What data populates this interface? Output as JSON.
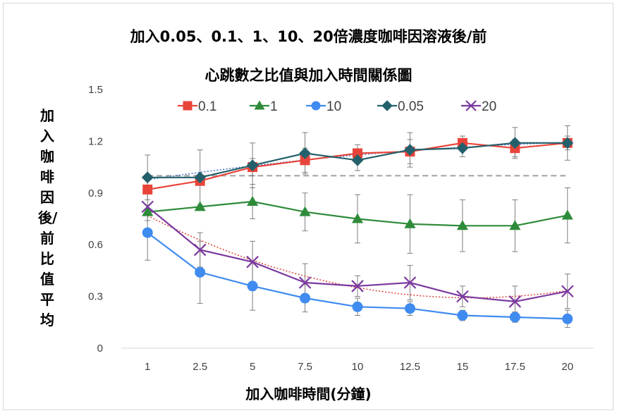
{
  "chart_data": {
    "type": "line",
    "title_line1": "加入0.05、0.1、1、10、20倍濃度咖啡因溶液後/前",
    "title_line2": "心跳數之比值與加入時間關係圖",
    "xlabel": "加入咖啡時間(分鐘)",
    "ylabel": "加入咖啡因後/前比值平均",
    "categories": [
      "1",
      "2.5",
      "5",
      "7.5",
      "10",
      "12.5",
      "15",
      "17.5",
      "20"
    ],
    "ylim": [
      0,
      1.5
    ],
    "yticks": [
      "0",
      "0.3",
      "0.6",
      "0.9",
      "1.2",
      "1.5"
    ],
    "reference_line": 1.0,
    "grid": false,
    "legend_position": "top",
    "series": [
      {
        "name": "0.1",
        "color": "#e8443a",
        "marker": "square",
        "values": [
          0.92,
          0.97,
          1.05,
          1.09,
          1.13,
          1.14,
          1.19,
          1.16,
          1.19
        ],
        "errors": [
          0.0,
          0.0,
          0.05,
          0.07,
          0.05,
          0.07,
          0.04,
          0.05,
          0.04
        ]
      },
      {
        "name": "1",
        "color": "#2e8b3a",
        "marker": "triangle",
        "values": [
          0.79,
          0.82,
          0.85,
          0.79,
          0.75,
          0.72,
          0.71,
          0.71,
          0.77
        ],
        "errors": [
          0.0,
          0.0,
          0.1,
          0.11,
          0.14,
          0.17,
          0.15,
          0.15,
          0.16
        ]
      },
      {
        "name": "10",
        "color": "#3f8bf0",
        "marker": "circle",
        "values": [
          0.67,
          0.44,
          0.36,
          0.29,
          0.24,
          0.23,
          0.19,
          0.18,
          0.17
        ],
        "errors": [
          0.16,
          0.18,
          0.14,
          0.08,
          0.05,
          0.04,
          0.03,
          0.03,
          0.05
        ]
      },
      {
        "name": "0.05",
        "color": "#24606b",
        "marker": "diamond",
        "values": [
          0.99,
          0.99,
          1.06,
          1.13,
          1.09,
          1.15,
          1.16,
          1.19,
          1.19
        ],
        "errors": [
          0.13,
          0.16,
          0.13,
          0.12,
          0.06,
          0.1,
          0.05,
          0.09,
          0.1
        ]
      },
      {
        "name": "20",
        "color": "#7b3aa0",
        "marker": "x",
        "values": [
          0.82,
          0.57,
          0.5,
          0.38,
          0.36,
          0.38,
          0.3,
          0.27,
          0.33
        ],
        "errors": [
          0.08,
          0.1,
          0.12,
          0.11,
          0.06,
          0.1,
          0.06,
          0.09,
          0.1
        ]
      }
    ],
    "trendlines": [
      {
        "series": "0.05",
        "color": "#4472c4"
      },
      {
        "series": "20",
        "color": "#d9443a"
      }
    ],
    "colors": {
      "error_bars": "#7f7f7f",
      "reference_line": "#a6a6a6",
      "axis": "#d9d9d9"
    }
  }
}
